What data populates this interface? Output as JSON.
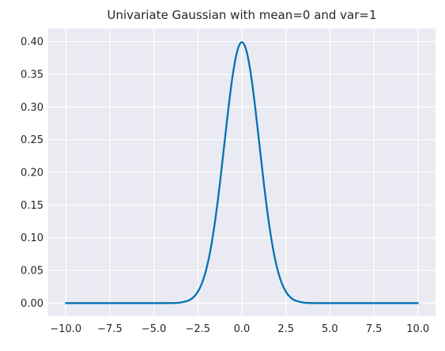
{
  "chart_data": {
    "type": "line",
    "title": "Univariate Gaussian with mean=0 and var=1",
    "xlabel": "",
    "ylabel": "",
    "xlim": [
      -11,
      11
    ],
    "ylim": [
      -0.02,
      0.42
    ],
    "grid": true,
    "x_ticks": [
      {
        "value": -10.0,
        "label": "−10.0"
      },
      {
        "value": -7.5,
        "label": "−7.5"
      },
      {
        "value": -5.0,
        "label": "−5.0"
      },
      {
        "value": -2.5,
        "label": "−2.5"
      },
      {
        "value": 0.0,
        "label": "0.0"
      },
      {
        "value": 2.5,
        "label": "2.5"
      },
      {
        "value": 5.0,
        "label": "5.0"
      },
      {
        "value": 7.5,
        "label": "7.5"
      },
      {
        "value": 10.0,
        "label": "10.0"
      }
    ],
    "y_ticks": [
      {
        "value": 0.0,
        "label": "0.00"
      },
      {
        "value": 0.05,
        "label": "0.05"
      },
      {
        "value": 0.1,
        "label": "0.10"
      },
      {
        "value": 0.15,
        "label": "0.15"
      },
      {
        "value": 0.2,
        "label": "0.20"
      },
      {
        "value": 0.25,
        "label": "0.25"
      },
      {
        "value": 0.3,
        "label": "0.30"
      },
      {
        "value": 0.35,
        "label": "0.35"
      },
      {
        "value": 0.4,
        "label": "0.40"
      }
    ],
    "series": [
      {
        "color": "#0072B2",
        "x": [
          -10,
          -5,
          -4,
          -3.5,
          -3,
          -2.75,
          -2.5,
          -2.25,
          -2,
          -1.75,
          -1.5,
          -1.25,
          -1,
          -0.75,
          -0.5,
          -0.25,
          0,
          0.25,
          0.5,
          0.75,
          1,
          1.25,
          1.5,
          1.75,
          2,
          2.25,
          2.5,
          2.75,
          3,
          3.5,
          4,
          5,
          10
        ],
        "y": [
          0.0,
          0.0,
          0.0001,
          0.0009,
          0.0044,
          0.0091,
          0.0175,
          0.0317,
          0.054,
          0.0863,
          0.1295,
          0.1826,
          0.242,
          0.3011,
          0.3521,
          0.3867,
          0.3989,
          0.3867,
          0.3521,
          0.3011,
          0.242,
          0.1826,
          0.1295,
          0.0863,
          0.054,
          0.0317,
          0.0175,
          0.0091,
          0.0044,
          0.0009,
          0.0001,
          0.0,
          0.0
        ]
      }
    ]
  },
  "colors": {
    "plot_background": "#EAEAF2",
    "grid": "#FFFFFF",
    "line": "#0072B2",
    "text": "#262626"
  }
}
